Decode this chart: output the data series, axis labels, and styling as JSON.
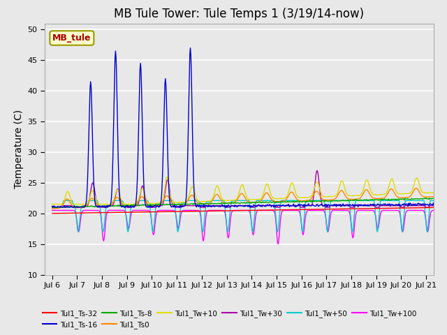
{
  "title": "MB Tule Tower: Tule Temps 1 (3/19/14-now)",
  "ylabel": "Temperature (C)",
  "xlim_start": 5.7,
  "xlim_end": 21.3,
  "ylim": [
    10,
    51
  ],
  "yticks": [
    10,
    15,
    20,
    25,
    30,
    35,
    40,
    45,
    50
  ],
  "xtick_labels": [
    "Jul 6",
    "Jul 7",
    "Jul 8",
    "Jul 9",
    "Jul 10",
    "Jul 11",
    "Jul 12",
    "Jul 13",
    "Jul 14",
    "Jul 15",
    "Jul 16",
    "Jul 17",
    "Jul 18",
    "Jul 19",
    "Jul 20",
    "Jul 21"
  ],
  "xtick_positions": [
    6,
    7,
    8,
    9,
    10,
    11,
    12,
    13,
    14,
    15,
    16,
    17,
    18,
    19,
    20,
    21
  ],
  "background_color": "#e8e8e8",
  "grid_color": "#ffffff",
  "title_fontsize": 12,
  "axis_label_fontsize": 10,
  "annotation_box": {
    "text": "MB_tule",
    "facecolor": "#ffffcc",
    "edgecolor": "#999900",
    "textcolor": "#aa0000",
    "fontsize": 9,
    "fontweight": "bold"
  },
  "series_colors": {
    "Tul1_Ts-32": "#ff0000",
    "Tul1_Ts-16": "#0000cc",
    "Tul1_Ts-8": "#00aa00",
    "Tul1_Ts0": "#ff8800",
    "Tul1_Tw+10": "#dddd00",
    "Tul1_Tw+30": "#aa00aa",
    "Tul1_Tw+50": "#00cccc",
    "Tul1_Tw+100": "#ff00ff"
  }
}
